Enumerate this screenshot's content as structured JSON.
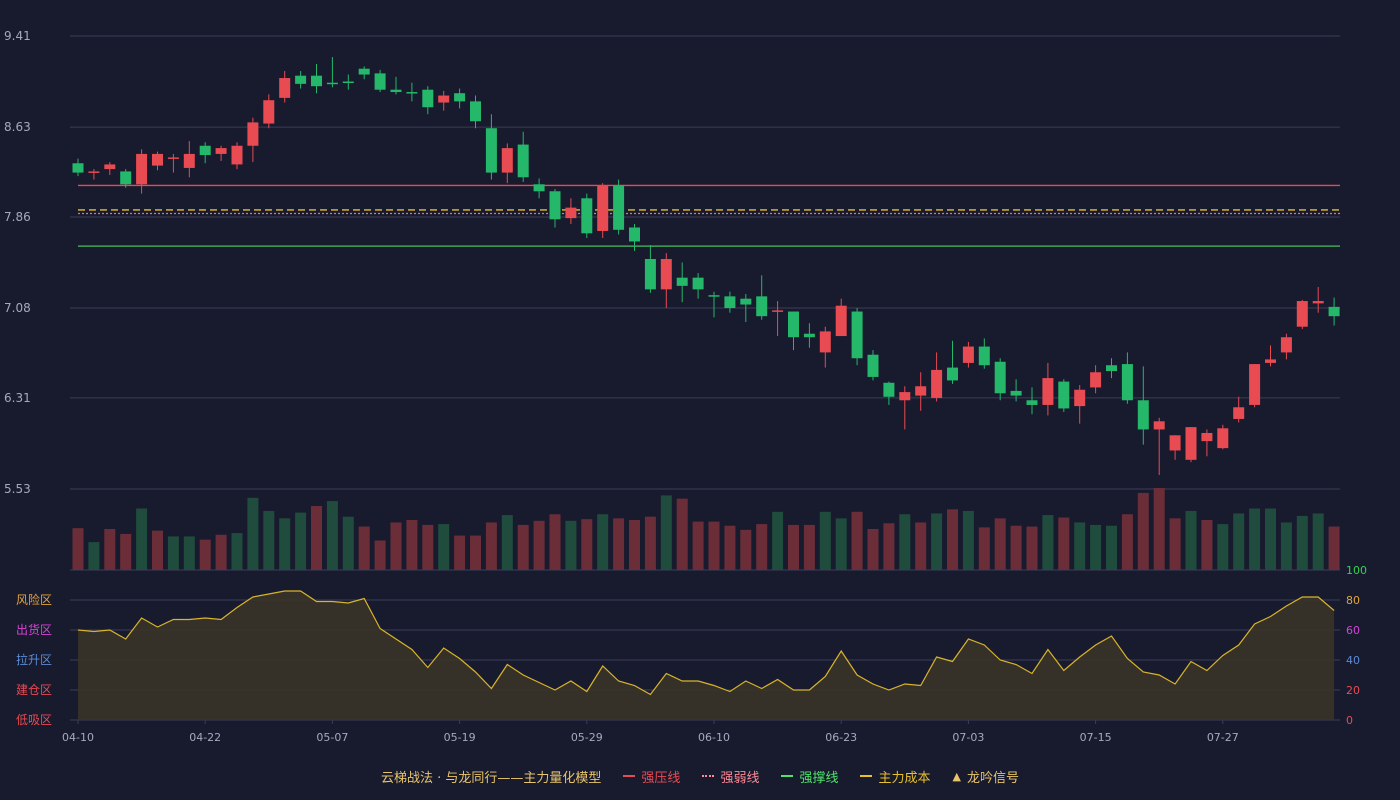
{
  "chart_data": {
    "type": "candlestick",
    "price_axis": {
      "ticks": [
        "9.41",
        "8.63",
        "7.86",
        "7.08",
        "6.31",
        "5.53"
      ],
      "min": 5.53,
      "max": 9.41
    },
    "x_ticks": [
      {
        "index": 0,
        "label": "04-10"
      },
      {
        "index": 8,
        "label": "04-22"
      },
      {
        "index": 16,
        "label": "05-07"
      },
      {
        "index": 24,
        "label": "05-19"
      },
      {
        "index": 32,
        "label": "05-29"
      },
      {
        "index": 40,
        "label": "06-10"
      },
      {
        "index": 48,
        "label": "06-23"
      },
      {
        "index": 56,
        "label": "07-03"
      },
      {
        "index": 64,
        "label": "07-15"
      },
      {
        "index": 72,
        "label": "07-27"
      }
    ],
    "candles": [
      [
        8.32,
        8.24,
        8.36,
        8.21
      ],
      [
        8.24,
        8.25,
        8.27,
        8.18
      ],
      [
        8.27,
        8.31,
        8.33,
        8.22
      ],
      [
        8.25,
        8.14,
        8.27,
        8.11
      ],
      [
        8.14,
        8.4,
        8.44,
        8.06
      ],
      [
        8.3,
        8.4,
        8.42,
        8.26
      ],
      [
        8.36,
        8.37,
        8.4,
        8.24
      ],
      [
        8.28,
        8.4,
        8.51,
        8.2
      ],
      [
        8.47,
        8.39,
        8.5,
        8.32
      ],
      [
        8.4,
        8.45,
        8.47,
        8.34
      ],
      [
        8.31,
        8.47,
        8.5,
        8.27
      ],
      [
        8.47,
        8.67,
        8.71,
        8.33
      ],
      [
        8.66,
        8.86,
        8.91,
        8.62
      ],
      [
        8.88,
        9.05,
        9.11,
        8.84
      ],
      [
        9.07,
        9.0,
        9.11,
        8.96
      ],
      [
        9.07,
        8.98,
        9.17,
        8.92
      ],
      [
        9.01,
        9.0,
        9.23,
        8.97
      ],
      [
        9.02,
        9.01,
        9.08,
        8.95
      ],
      [
        9.13,
        9.08,
        9.15,
        9.04
      ],
      [
        9.09,
        8.95,
        9.12,
        8.93
      ],
      [
        8.95,
        8.93,
        9.06,
        8.91
      ],
      [
        8.93,
        8.92,
        9.01,
        8.85
      ],
      [
        8.95,
        8.8,
        8.98,
        8.74
      ],
      [
        8.84,
        8.9,
        8.94,
        8.77
      ],
      [
        8.92,
        8.85,
        8.96,
        8.79
      ],
      [
        8.85,
        8.68,
        8.9,
        8.62
      ],
      [
        8.62,
        8.24,
        8.74,
        8.18
      ],
      [
        8.24,
        8.45,
        8.49,
        8.15
      ],
      [
        8.48,
        8.2,
        8.59,
        8.16
      ],
      [
        8.14,
        8.08,
        8.19,
        8.02
      ],
      [
        8.08,
        7.84,
        8.1,
        7.77
      ],
      [
        7.85,
        7.94,
        8.02,
        7.8
      ],
      [
        8.02,
        7.72,
        8.06,
        7.68
      ],
      [
        7.74,
        8.13,
        8.15,
        7.68
      ],
      [
        8.13,
        7.75,
        8.18,
        7.71
      ],
      [
        7.77,
        7.65,
        7.8,
        7.57
      ],
      [
        7.5,
        7.24,
        7.62,
        7.21
      ],
      [
        7.24,
        7.5,
        7.55,
        7.08
      ],
      [
        7.34,
        7.27,
        7.47,
        7.13
      ],
      [
        7.34,
        7.24,
        7.38,
        7.16
      ],
      [
        7.19,
        7.18,
        7.22,
        7.0
      ],
      [
        7.18,
        7.08,
        7.22,
        7.04
      ],
      [
        7.16,
        7.11,
        7.2,
        6.96
      ],
      [
        7.18,
        7.01,
        7.36,
        6.98
      ],
      [
        7.05,
        7.06,
        7.14,
        6.84
      ],
      [
        7.05,
        6.83,
        7.05,
        6.72
      ],
      [
        6.86,
        6.83,
        6.95,
        6.74
      ],
      [
        6.7,
        6.88,
        6.92,
        6.57
      ],
      [
        6.84,
        7.1,
        7.16,
        6.87
      ],
      [
        7.05,
        6.65,
        7.08,
        6.59
      ],
      [
        6.68,
        6.49,
        6.72,
        6.46
      ],
      [
        6.44,
        6.32,
        6.45,
        6.25
      ],
      [
        6.29,
        6.36,
        6.41,
        6.04
      ],
      [
        6.33,
        6.41,
        6.53,
        6.2
      ],
      [
        6.31,
        6.55,
        6.7,
        6.28
      ],
      [
        6.57,
        6.46,
        6.8,
        6.43
      ],
      [
        6.61,
        6.75,
        6.79,
        6.57
      ],
      [
        6.75,
        6.59,
        6.82,
        6.56
      ],
      [
        6.62,
        6.35,
        6.65,
        6.29
      ],
      [
        6.37,
        6.33,
        6.47,
        6.28
      ],
      [
        6.29,
        6.25,
        6.4,
        6.17
      ],
      [
        6.25,
        6.48,
        6.61,
        6.16
      ],
      [
        6.45,
        6.22,
        6.47,
        6.19
      ],
      [
        6.24,
        6.38,
        6.42,
        6.09
      ],
      [
        6.4,
        6.53,
        6.59,
        6.35
      ],
      [
        6.59,
        6.54,
        6.65,
        6.48
      ],
      [
        6.6,
        6.29,
        6.7,
        6.26
      ],
      [
        6.29,
        6.04,
        6.58,
        5.91
      ],
      [
        6.04,
        6.11,
        6.14,
        5.65
      ],
      [
        5.86,
        5.99,
        5.99,
        5.78
      ],
      [
        5.78,
        6.06,
        6.06,
        5.76
      ],
      [
        5.94,
        6.01,
        6.04,
        5.81
      ],
      [
        5.88,
        6.05,
        6.08,
        5.87
      ],
      [
        6.13,
        6.23,
        6.32,
        6.1
      ],
      [
        6.25,
        6.6,
        6.6,
        6.23
      ],
      [
        6.61,
        6.64,
        6.76,
        6.58
      ],
      [
        6.7,
        6.83,
        6.86,
        6.64
      ],
      [
        6.92,
        7.14,
        7.15,
        6.9
      ],
      [
        7.12,
        7.14,
        7.26,
        7.04
      ],
      [
        7.09,
        7.01,
        7.17,
        6.93
      ]
    ],
    "volume_max": 100,
    "volumes": [
      [
        51,
        1
      ],
      [
        34,
        0
      ],
      [
        50,
        1
      ],
      [
        44,
        1
      ],
      [
        75,
        0
      ],
      [
        48,
        1
      ],
      [
        41,
        0
      ],
      [
        41,
        0
      ],
      [
        37,
        1
      ],
      [
        43,
        1
      ],
      [
        45,
        0
      ],
      [
        88,
        0
      ],
      [
        72,
        0
      ],
      [
        63,
        0
      ],
      [
        70,
        0
      ],
      [
        78,
        1
      ],
      [
        84,
        0
      ],
      [
        65,
        0
      ],
      [
        53,
        1
      ],
      [
        36,
        1
      ],
      [
        58,
        1
      ],
      [
        61,
        1
      ],
      [
        55,
        1
      ],
      [
        56,
        0
      ],
      [
        42,
        1
      ],
      [
        42,
        1
      ],
      [
        58,
        1
      ],
      [
        67,
        0
      ],
      [
        55,
        1
      ],
      [
        60,
        1
      ],
      [
        68,
        1
      ],
      [
        60,
        0
      ],
      [
        62,
        1
      ],
      [
        68,
        0
      ],
      [
        63,
        1
      ],
      [
        61,
        1
      ],
      [
        65,
        1
      ],
      [
        91,
        0
      ],
      [
        87,
        1
      ],
      [
        59,
        1
      ],
      [
        59,
        1
      ],
      [
        54,
        1
      ],
      [
        49,
        1
      ],
      [
        56,
        1
      ],
      [
        71,
        0
      ],
      [
        55,
        1
      ],
      [
        55,
        1
      ],
      [
        71,
        0
      ],
      [
        63,
        0
      ],
      [
        71,
        1
      ],
      [
        50,
        1
      ],
      [
        57,
        1
      ],
      [
        68,
        0
      ],
      [
        58,
        1
      ],
      [
        69,
        0
      ],
      [
        74,
        1
      ],
      [
        72,
        0
      ],
      [
        52,
        1
      ],
      [
        63,
        1
      ],
      [
        54,
        1
      ],
      [
        53,
        1
      ],
      [
        67,
        0
      ],
      [
        64,
        1
      ],
      [
        58,
        0
      ],
      [
        55,
        0
      ],
      [
        54,
        0
      ],
      [
        68,
        1
      ],
      [
        94,
        1
      ],
      [
        100,
        1
      ],
      [
        63,
        1
      ],
      [
        72,
        0
      ],
      [
        61,
        1
      ],
      [
        56,
        0
      ],
      [
        69,
        0
      ],
      [
        75,
        0
      ],
      [
        75,
        0
      ],
      [
        58,
        0
      ],
      [
        66,
        0
      ],
      [
        69,
        0
      ],
      [
        53,
        1
      ]
    ],
    "indicator": {
      "y_ticks": [
        100,
        80,
        60,
        40,
        20,
        0
      ],
      "y_tick_colors": [
        "#31d44e",
        "#e2a53a",
        "#d544d5",
        "#5a8cd6",
        "#e84b52",
        "#e84b52"
      ],
      "zones": [
        {
          "label": "风险区",
          "color": "#e2a53a"
        },
        {
          "label": "出货区",
          "color": "#d544d5"
        },
        {
          "label": "拉升区",
          "color": "#5a8cd6"
        },
        {
          "label": "建仓区",
          "color": "#e84b52"
        },
        {
          "label": "低吸区",
          "color": "#e84b52"
        }
      ],
      "values": [
        60,
        59,
        60,
        54,
        68,
        62,
        67,
        67,
        68,
        67,
        75,
        82,
        84,
        86,
        86,
        79,
        79,
        78,
        81,
        61,
        54,
        47,
        35,
        48,
        41,
        32,
        21,
        37,
        30,
        25,
        20,
        26,
        19,
        36,
        26,
        23,
        17,
        31,
        26,
        26,
        23,
        19,
        26,
        21,
        27,
        20,
        20,
        29,
        46,
        30,
        24,
        20,
        24,
        23,
        42,
        39,
        54,
        50,
        40,
        37,
        31,
        47,
        33,
        42,
        50,
        56,
        41,
        32,
        30,
        24,
        39,
        33,
        43,
        50,
        64,
        69,
        76,
        82,
        82,
        73
      ]
    },
    "levels": [
      {
        "name": "强压线",
        "value": 8.13,
        "color": "#e84b52",
        "style": "solid"
      },
      {
        "name": "主力成本",
        "value": 7.92,
        "color": "#e8c02a",
        "style": "dashed"
      },
      {
        "name": "强弱线",
        "value": 7.89,
        "color": "#d97a82",
        "style": "dotted"
      },
      {
        "name": "强撑线",
        "value": 7.61,
        "color": "#46c05b",
        "style": "solid"
      }
    ],
    "legend": {
      "title": "云梯战法 · 与龙同行——主力量化模型",
      "items": [
        {
          "label": "强压线",
          "color": "#e84b52",
          "style": "solid"
        },
        {
          "label": "强弱线",
          "color": "#ff8a95",
          "style": "dotted"
        },
        {
          "label": "强撑线",
          "color": "#4fe36a",
          "style": "solid"
        },
        {
          "label": "主力成本",
          "color": "#e8c02a",
          "style": "dashed"
        },
        {
          "label": "龙吟信号",
          "color": "#e8c46a",
          "style": "triangle"
        }
      ]
    },
    "colors": {
      "up": "#e84b52",
      "down": "#25b86b",
      "vol_up": "#6b2e38",
      "vol_down": "#1f4c3c",
      "indicator_line": "#d9b42a",
      "indicator_fill": "#3a3428",
      "grid": "#3a3d55",
      "axis_text": "#a6a9bd"
    }
  }
}
